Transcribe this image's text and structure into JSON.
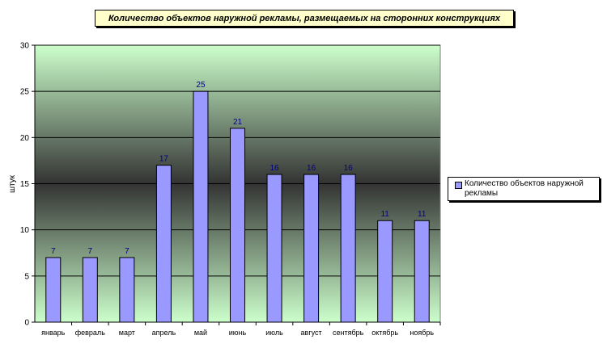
{
  "chart_data": {
    "type": "bar",
    "title": "Количество объектов наружной рекламы, размещаемых на сторонних конструкциях",
    "xlabel": "",
    "ylabel": "штук",
    "ylim": [
      0,
      30
    ],
    "yticks": [
      0,
      5,
      10,
      15,
      20,
      25,
      30
    ],
    "grid": true,
    "legend_position": "right",
    "categories": [
      "январь",
      "февраль",
      "март",
      "апрель",
      "май",
      "июнь",
      "июль",
      "август",
      "сентябрь",
      "октябрь",
      "ноябрь"
    ],
    "series": [
      {
        "name": "Количество объектов наружной рекламы",
        "values": [
          7,
          7,
          7,
          17,
          25,
          21,
          16,
          16,
          16,
          11,
          11
        ],
        "color": "#9999ff"
      }
    ],
    "data_label_color": "#000080",
    "plot_gradient": [
      "#ccffcc",
      "#333333",
      "#ccffcc"
    ]
  }
}
